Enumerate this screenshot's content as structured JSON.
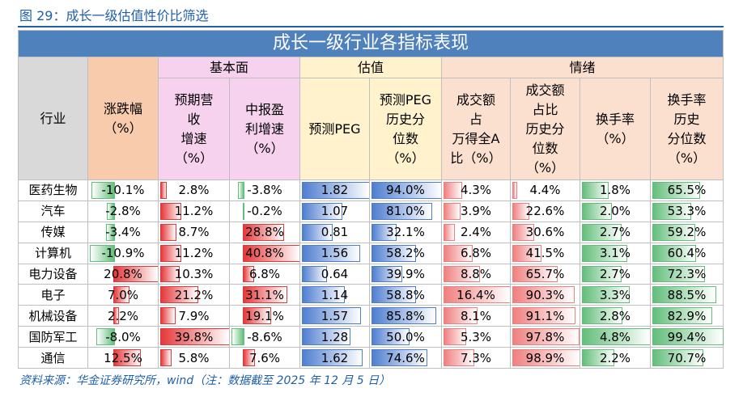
{
  "caption": "图 29：成长一级估值性价比筛选",
  "table": {
    "title": "成长一级行业各指标表现",
    "groups": [
      "基本面",
      "估值",
      "情绪"
    ],
    "headers": [
      "行业",
      "涨跌幅\n（%）",
      "预期营\n收\n增速\n（%）",
      "中报盈\n利增速\n（%）",
      "预测PEG",
      "预测PEG\n历史分\n位数\n（%）",
      "成交额\n占\n万得全A\n比（%）",
      "成交额\n占比\n历史分\n位数\n（%）",
      "换手率\n（%）",
      "换手率\n历史\n分位数\n（%）"
    ],
    "rows": [
      [
        "医药生物",
        "-10.1%",
        "2.8%",
        "-3.8%",
        "1.82",
        "94.0%",
        "4.3%",
        "4.4%",
        "1.8%",
        "65.5%"
      ],
      [
        "汽车",
        "-2.8%",
        "11.2%",
        "-0.2%",
        "1.07",
        "81.0%",
        "3.9%",
        "22.6%",
        "2.0%",
        "53.3%"
      ],
      [
        "传媒",
        "-3.4%",
        "8.7%",
        "28.8%",
        "0.81",
        "32.1%",
        "2.4%",
        "30.6%",
        "2.7%",
        "59.2%"
      ],
      [
        "计算机",
        "-10.9%",
        "11.2%",
        "40.8%",
        "1.56",
        "58.2%",
        "6.8%",
        "41.5%",
        "3.1%",
        "60.4%"
      ],
      [
        "电力设备",
        "20.8%",
        "10.3%",
        "6.8%",
        "0.64",
        "39.9%",
        "8.8%",
        "65.7%",
        "2.7%",
        "72.3%"
      ],
      [
        "电子",
        "7.0%",
        "21.2%",
        "31.1%",
        "1.14",
        "58.8%",
        "16.4%",
        "90.3%",
        "3.3%",
        "88.5%"
      ],
      [
        "机械设备",
        "2.2%",
        "7.9%",
        "19.1%",
        "1.57",
        "85.8%",
        "8.1%",
        "91.1%",
        "2.8%",
        "82.9%"
      ],
      [
        "国防军工",
        "-8.0%",
        "39.8%",
        "-8.6%",
        "1.28",
        "50.0%",
        "5.3%",
        "97.8%",
        "4.8%",
        "99.4%"
      ],
      [
        "通信",
        "12.5%",
        "5.8%",
        "7.6%",
        "1.62",
        "74.6%",
        "7.3%",
        "98.9%",
        "2.2%",
        "70.7%"
      ]
    ]
  },
  "source": "资料来源：华金证券研究所，wind（注：数据截至 2025 年 12 月 5 日）"
}
